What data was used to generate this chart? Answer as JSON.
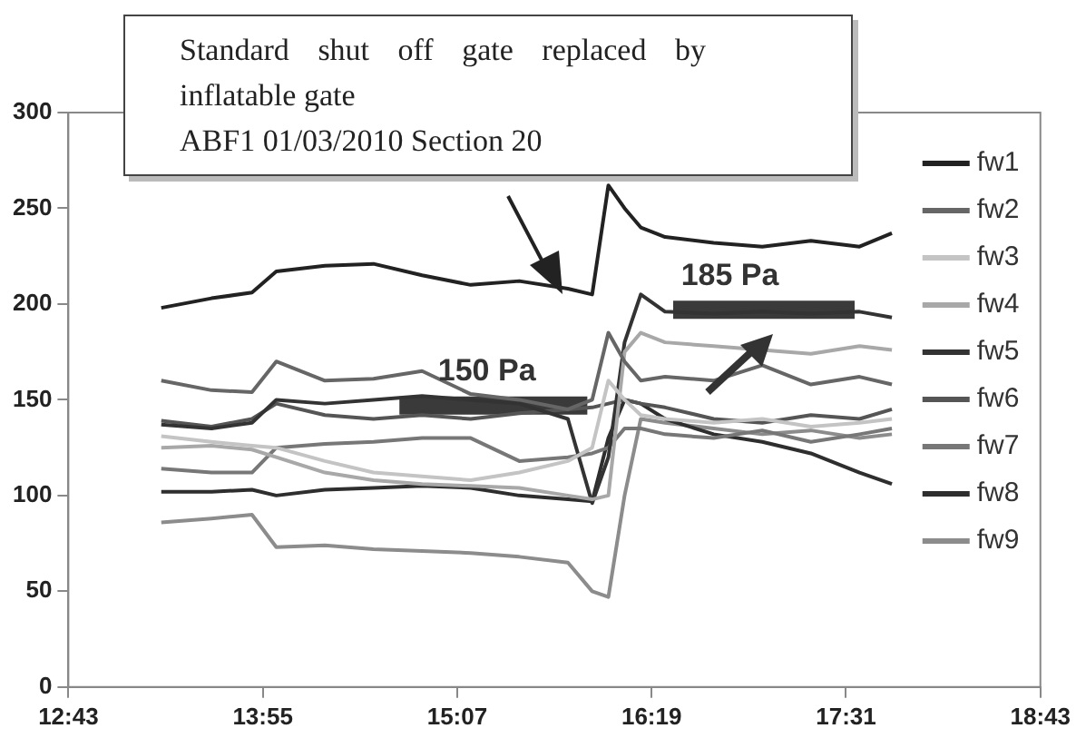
{
  "chart_data": {
    "type": "line",
    "x": [
      13.29,
      13.6,
      13.85,
      14.0,
      14.3,
      14.6,
      14.9,
      15.2,
      15.5,
      15.8,
      15.95,
      16.05,
      16.15,
      16.25,
      16.4,
      16.7,
      17.0,
      17.3,
      17.6,
      17.8
    ],
    "series": [
      {
        "name": "fw1",
        "color": "#222222",
        "values": [
          198,
          203,
          206,
          217,
          220,
          221,
          215,
          210,
          212,
          208,
          205,
          262,
          250,
          240,
          235,
          232,
          230,
          233,
          230,
          237
        ]
      },
      {
        "name": "fw2",
        "color": "#666666",
        "values": [
          160,
          155,
          154,
          170,
          160,
          161,
          165,
          153,
          150,
          145,
          150,
          185,
          170,
          160,
          162,
          160,
          168,
          158,
          162,
          158
        ]
      },
      {
        "name": "fw3",
        "color": "#c4c4c4",
        "values": [
          131,
          128,
          126,
          125,
          118,
          112,
          110,
          108,
          112,
          118,
          125,
          160,
          150,
          142,
          140,
          138,
          140,
          136,
          138,
          140
        ]
      },
      {
        "name": "fw4",
        "color": "#a8a8a8",
        "values": [
          125,
          126,
          124,
          120,
          112,
          108,
          106,
          105,
          104,
          100,
          98,
          100,
          175,
          185,
          180,
          178,
          176,
          174,
          178,
          176
        ]
      },
      {
        "name": "fw5",
        "color": "#333333",
        "values": [
          137,
          135,
          138,
          150,
          148,
          150,
          152,
          150,
          148,
          140,
          96,
          120,
          180,
          205,
          196,
          195,
          196,
          195,
          196,
          193
        ]
      },
      {
        "name": "fw6",
        "color": "#555555",
        "values": [
          139,
          136,
          140,
          148,
          142,
          140,
          142,
          140,
          143,
          145,
          146,
          148,
          150,
          148,
          146,
          140,
          138,
          142,
          140,
          145
        ]
      },
      {
        "name": "fw7",
        "color": "#777777",
        "values": [
          114,
          112,
          112,
          125,
          127,
          128,
          130,
          130,
          118,
          120,
          122,
          125,
          135,
          135,
          132,
          130,
          134,
          128,
          132,
          135
        ]
      },
      {
        "name": "fw8",
        "color": "#2e2e2e",
        "values": [
          102,
          102,
          103,
          100,
          103,
          104,
          105,
          104,
          100,
          98,
          97,
          130,
          150,
          148,
          140,
          132,
          128,
          122,
          112,
          106
        ]
      },
      {
        "name": "fw9",
        "color": "#8c8c8c",
        "values": [
          86,
          88,
          90,
          73,
          74,
          72,
          71,
          70,
          68,
          65,
          50,
          47,
          100,
          140,
          138,
          135,
          132,
          134,
          130,
          132
        ]
      },
      {
        "color": "#3a3a3a",
        "x": [
          14.76,
          15.92
        ],
        "values": [
          147,
          147
        ]
      },
      {
        "color": "#3a3a3a",
        "x": [
          16.45,
          17.57
        ],
        "values": [
          197,
          197
        ]
      }
    ],
    "xlim": [
      12.7167,
      18.7167
    ],
    "xticks": [
      {
        "value": 12.7167,
        "label": "12:43"
      },
      {
        "value": 13.9167,
        "label": "13:55"
      },
      {
        "value": 15.1167,
        "label": "15:07"
      },
      {
        "value": 16.3167,
        "label": "16:19"
      },
      {
        "value": 17.5167,
        "label": "17:31"
      },
      {
        "value": 18.7167,
        "label": "18:43"
      }
    ],
    "ylim": [
      0,
      300
    ],
    "yticks": [
      0,
      50,
      100,
      150,
      200,
      250,
      300
    ],
    "grid": false,
    "legend": "right",
    "marker": "none",
    "line_style": "solid",
    "annotations": [
      "Standard shut off gate replaced by inflatable gate\nABF1 01/03/2010 Section 20",
      {
        "text": "150 Pa",
        "x": 15.3,
        "y": 147
      },
      {
        "text": "185 Pa",
        "x": 16.8,
        "y": 197
      }
    ]
  }
}
